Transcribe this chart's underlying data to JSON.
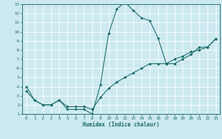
{
  "xlabel": "Humidex (Indice chaleur)",
  "bg_color": "#cce9f0",
  "grid_color": "#ffffff",
  "line_color": "#1a6b6b",
  "xlim": [
    -0.5,
    23.5
  ],
  "ylim": [
    1,
    13
  ],
  "xticks": [
    0,
    1,
    2,
    3,
    4,
    5,
    6,
    7,
    8,
    9,
    10,
    11,
    12,
    13,
    14,
    15,
    16,
    17,
    18,
    19,
    20,
    21,
    22,
    23
  ],
  "yticks": [
    1,
    2,
    3,
    4,
    5,
    6,
    7,
    8,
    9,
    10,
    11,
    12,
    13
  ],
  "line1_x": [
    0,
    1,
    2,
    3,
    4,
    5,
    6,
    7,
    8,
    9,
    10,
    11,
    12,
    13,
    14,
    15,
    16,
    17,
    18,
    19,
    20,
    21,
    22,
    23
  ],
  "line1_y": [
    4.0,
    2.5,
    2.0,
    2.0,
    2.5,
    1.5,
    1.5,
    1.5,
    1.0,
    4.2,
    9.8,
    12.5,
    13.2,
    12.3,
    11.5,
    11.2,
    9.3,
    6.5,
    6.5,
    7.0,
    7.5,
    8.3,
    8.3,
    9.2
  ],
  "line2_x": [
    0,
    1,
    2,
    3,
    4,
    5,
    6,
    7,
    8,
    9,
    10,
    11,
    12,
    13,
    14,
    15,
    16,
    17,
    18,
    19,
    20,
    21,
    22,
    23
  ],
  "line2_y": [
    3.5,
    2.5,
    2.0,
    2.0,
    2.5,
    1.8,
    1.8,
    1.8,
    1.5,
    2.8,
    3.8,
    4.5,
    5.0,
    5.5,
    6.0,
    6.5,
    6.5,
    6.5,
    7.0,
    7.3,
    7.8,
    8.0,
    8.3,
    9.2
  ]
}
